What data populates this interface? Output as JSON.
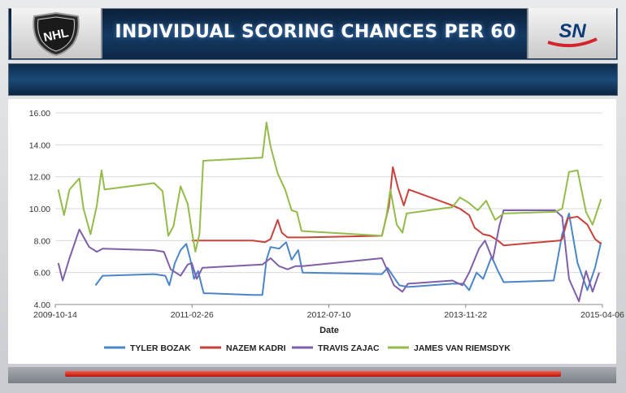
{
  "title": "INDIVIDUAL SCORING CHANCES PER 60",
  "logos": {
    "left": "NHL",
    "right": "SN"
  },
  "icons": {
    "left": "nhl-shield-logo",
    "right": "sportsnet-logo"
  },
  "colors": {
    "TYLER BOZAK": "#4a86c8",
    "NAZEM KADRI": "#c8423c",
    "TRAVIS ZAJAC": "#7e5fa8",
    "JAMES VAN RIEMSDYK": "#95bb4a"
  },
  "chart_data": {
    "type": "line",
    "xlabel": "Date",
    "ylabel": "",
    "ylim": [
      4.0,
      16.0
    ],
    "yticks": [
      "4.00",
      "6.00",
      "8.00",
      "10.00",
      "12.00",
      "14.00",
      "16.00"
    ],
    "xlim": [
      "2009-10-14",
      "2015-04-06"
    ],
    "xticks": [
      "2009-10-14",
      "2011-02-26",
      "2012-07-10",
      "2013-11-22",
      "2015-04-06"
    ],
    "grid": "horizontal",
    "legend": "bottom",
    "series": [
      {
        "name": "TYLER BOZAK",
        "points": [
          [
            "2010-03-10",
            5.2
          ],
          [
            "2010-04-05",
            5.8
          ],
          [
            "2010-10-10",
            5.9
          ],
          [
            "2010-11-20",
            5.8
          ],
          [
            "2010-12-05",
            5.2
          ],
          [
            "2010-12-25",
            6.6
          ],
          [
            "2011-01-15",
            7.4
          ],
          [
            "2011-02-05",
            7.8
          ],
          [
            "2011-02-20",
            6.8
          ],
          [
            "2011-03-05",
            5.6
          ],
          [
            "2011-03-20",
            6.1
          ],
          [
            "2011-04-05",
            5.0
          ],
          [
            "2011-04-10",
            4.7
          ],
          [
            "2011-05-01",
            4.7
          ],
          [
            "2011-10-05",
            4.6
          ],
          [
            "2011-11-10",
            4.6
          ],
          [
            "2011-11-25",
            6.8
          ],
          [
            "2011-12-10",
            7.6
          ],
          [
            "2012-01-10",
            7.5
          ],
          [
            "2012-02-05",
            7.9
          ],
          [
            "2012-02-25",
            6.8
          ],
          [
            "2012-03-20",
            7.4
          ],
          [
            "2012-04-05",
            6.0
          ],
          [
            "2013-01-20",
            5.9
          ],
          [
            "2013-02-10",
            6.3
          ],
          [
            "2013-03-01",
            5.8
          ],
          [
            "2013-03-25",
            5.2
          ],
          [
            "2013-04-25",
            5.1
          ],
          [
            "2013-10-05",
            5.3
          ],
          [
            "2013-11-15",
            5.3
          ],
          [
            "2013-12-05",
            4.9
          ],
          [
            "2014-01-01",
            6.0
          ],
          [
            "2014-01-25",
            5.6
          ],
          [
            "2014-02-25",
            7.0
          ],
          [
            "2014-03-20",
            6.1
          ],
          [
            "2014-04-10",
            5.4
          ],
          [
            "2014-10-10",
            5.5
          ],
          [
            "2014-11-10",
            8.4
          ],
          [
            "2014-12-05",
            9.7
          ],
          [
            "2015-01-05",
            6.6
          ],
          [
            "2015-02-10",
            4.9
          ],
          [
            "2015-03-10",
            6.3
          ],
          [
            "2015-04-01",
            7.9
          ]
        ]
      },
      {
        "name": "NAZEM KADRI",
        "points": [
          [
            "2011-02-25",
            8.0
          ],
          [
            "2011-10-05",
            8.0
          ],
          [
            "2011-11-20",
            7.9
          ],
          [
            "2011-12-10",
            8.1
          ],
          [
            "2012-01-05",
            9.3
          ],
          [
            "2012-01-20",
            8.5
          ],
          [
            "2012-02-10",
            8.2
          ],
          [
            "2012-04-05",
            8.2
          ],
          [
            "2013-01-20",
            8.3
          ],
          [
            "2013-02-15",
            10.2
          ],
          [
            "2013-03-01",
            12.6
          ],
          [
            "2013-03-20",
            11.3
          ],
          [
            "2013-04-10",
            10.2
          ],
          [
            "2013-04-28",
            11.2
          ],
          [
            "2013-10-05",
            10.2
          ],
          [
            "2013-11-01",
            10.0
          ],
          [
            "2013-12-05",
            9.6
          ],
          [
            "2013-12-25",
            8.8
          ],
          [
            "2014-01-25",
            8.4
          ],
          [
            "2014-02-20",
            8.3
          ],
          [
            "2014-03-20",
            8.0
          ],
          [
            "2014-04-10",
            7.7
          ],
          [
            "2014-11-01",
            8.0
          ],
          [
            "2014-11-10",
            8.1
          ],
          [
            "2014-12-01",
            9.4
          ],
          [
            "2015-01-05",
            9.5
          ],
          [
            "2015-02-10",
            9.0
          ],
          [
            "2015-03-10",
            8.1
          ],
          [
            "2015-04-01",
            7.8
          ]
        ]
      },
      {
        "name": "TRAVIS ZAJAC",
        "points": [
          [
            "2009-10-25",
            6.6
          ],
          [
            "2009-11-10",
            5.5
          ],
          [
            "2009-12-05",
            6.9
          ],
          [
            "2010-01-10",
            8.7
          ],
          [
            "2010-02-15",
            7.6
          ],
          [
            "2010-03-15",
            7.3
          ],
          [
            "2010-04-05",
            7.5
          ],
          [
            "2010-10-10",
            7.4
          ],
          [
            "2010-11-15",
            7.3
          ],
          [
            "2010-12-10",
            6.2
          ],
          [
            "2011-01-15",
            5.8
          ],
          [
            "2011-02-10",
            6.5
          ],
          [
            "2011-02-25",
            6.6
          ],
          [
            "2011-03-15",
            5.6
          ],
          [
            "2011-04-05",
            6.3
          ],
          [
            "2011-11-10",
            6.5
          ],
          [
            "2011-12-10",
            6.9
          ],
          [
            "2012-01-10",
            6.4
          ],
          [
            "2012-02-10",
            6.2
          ],
          [
            "2012-03-10",
            6.4
          ],
          [
            "2012-04-05",
            6.4
          ],
          [
            "2013-01-20",
            6.9
          ],
          [
            "2013-03-05",
            5.2
          ],
          [
            "2013-04-05",
            4.8
          ],
          [
            "2013-04-25",
            5.3
          ],
          [
            "2013-10-05",
            5.5
          ],
          [
            "2013-11-10",
            5.2
          ],
          [
            "2013-12-05",
            6.0
          ],
          [
            "2014-01-10",
            7.5
          ],
          [
            "2014-02-01",
            8.0
          ],
          [
            "2014-03-01",
            6.8
          ],
          [
            "2014-03-25",
            8.9
          ],
          [
            "2014-04-10",
            9.9
          ],
          [
            "2014-10-15",
            9.9
          ],
          [
            "2014-11-10",
            9.5
          ],
          [
            "2014-12-05",
            5.6
          ],
          [
            "2015-01-10",
            4.2
          ],
          [
            "2015-02-05",
            6.1
          ],
          [
            "2015-03-01",
            4.8
          ],
          [
            "2015-03-25",
            6.0
          ]
        ]
      },
      {
        "name": "JAMES VAN RIEMSDYK",
        "points": [
          [
            "2009-10-25",
            11.2
          ],
          [
            "2009-11-15",
            9.6
          ],
          [
            "2009-12-05",
            11.2
          ],
          [
            "2010-01-10",
            11.9
          ],
          [
            "2010-01-25",
            10.0
          ],
          [
            "2010-02-20",
            8.4
          ],
          [
            "2010-03-15",
            10.2
          ],
          [
            "2010-04-01",
            12.4
          ],
          [
            "2010-04-12",
            11.2
          ],
          [
            "2010-10-10",
            11.6
          ],
          [
            "2010-11-10",
            11.1
          ],
          [
            "2010-12-01",
            8.3
          ],
          [
            "2010-12-20",
            8.9
          ],
          [
            "2011-01-15",
            11.4
          ],
          [
            "2011-02-10",
            10.3
          ],
          [
            "2011-02-25",
            8.6
          ],
          [
            "2011-03-10",
            7.3
          ],
          [
            "2011-03-25",
            8.4
          ],
          [
            "2011-04-08",
            13.0
          ],
          [
            "2011-11-10",
            13.2
          ],
          [
            "2011-11-25",
            15.4
          ],
          [
            "2011-12-10",
            13.9
          ],
          [
            "2012-01-05",
            12.2
          ],
          [
            "2012-02-01",
            11.2
          ],
          [
            "2012-02-25",
            9.9
          ],
          [
            "2012-03-15",
            9.8
          ],
          [
            "2012-04-01",
            8.6
          ],
          [
            "2013-01-20",
            8.3
          ],
          [
            "2013-02-05",
            9.5
          ],
          [
            "2013-02-20",
            11.2
          ],
          [
            "2013-03-15",
            9.0
          ],
          [
            "2013-04-05",
            8.5
          ],
          [
            "2013-04-20",
            9.7
          ],
          [
            "2013-10-05",
            10.1
          ],
          [
            "2013-11-01",
            10.7
          ],
          [
            "2013-12-01",
            10.4
          ],
          [
            "2014-01-05",
            9.9
          ],
          [
            "2014-02-05",
            10.5
          ],
          [
            "2014-03-10",
            9.3
          ],
          [
            "2014-04-10",
            9.7
          ],
          [
            "2014-10-15",
            9.8
          ],
          [
            "2014-11-10",
            10.0
          ],
          [
            "2014-12-05",
            12.3
          ],
          [
            "2015-01-05",
            12.4
          ],
          [
            "2015-02-05",
            9.8
          ],
          [
            "2015-03-01",
            9.0
          ],
          [
            "2015-04-01",
            10.6
          ]
        ]
      }
    ]
  }
}
